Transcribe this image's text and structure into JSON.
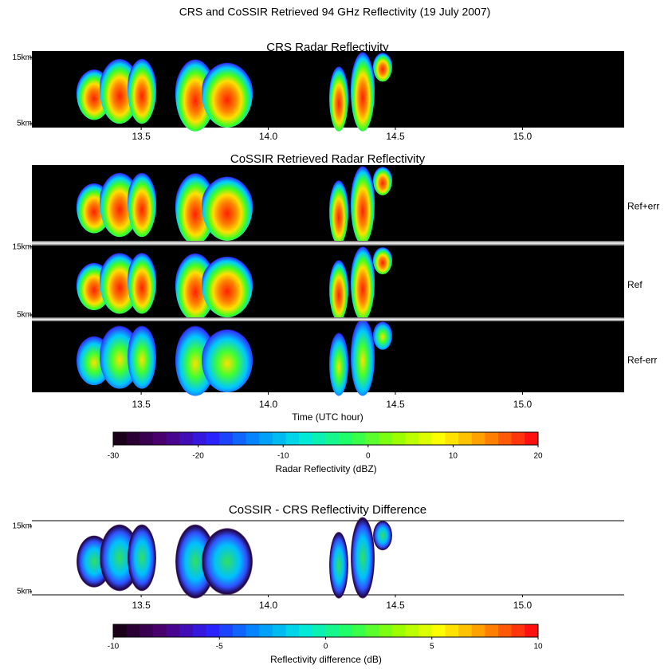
{
  "title": "CRS and CoSSIR Retrieved 94 GHz Reflectivity (19 July 2007)",
  "chart_data": [
    {
      "type": "heatmap",
      "title": "CRS Radar Reflectivity",
      "xlim": [
        13.07,
        15.4
      ],
      "xticks": [
        13.5,
        {
          "value": 14,
          "label": "14.0"
        },
        14.5,
        {
          "value": 15,
          "label": "15.0"
        }
      ],
      "ylim": [
        4.4,
        16
      ],
      "yticks": [
        {
          "value": 5,
          "label": "5km"
        },
        {
          "value": 15,
          "label": "15km"
        }
      ]
    },
    {
      "type": "heatmap",
      "title": "CoSSIR Retrieved Radar Reflectivity",
      "row_labels": [
        "Ref+err",
        "Ref",
        "Ref-err"
      ],
      "xlim": [
        13.07,
        15.4
      ],
      "xticks": [
        13.5,
        {
          "value": 14,
          "label": "14.0"
        },
        14.5,
        {
          "value": 15,
          "label": "15.0"
        }
      ],
      "xlabel": "Time (UTC hour)",
      "ylim": [
        4.65,
        15.2
      ],
      "yticks": [
        {
          "value": 5,
          "label": "5km"
        },
        {
          "value": 15,
          "label": "15km"
        }
      ],
      "colorbar": {
        "label": "Radar Reflectivity (dBZ)",
        "lim": [
          -30,
          20
        ],
        "ticks": [
          -30,
          -20,
          -10,
          0,
          10,
          20
        ]
      }
    },
    {
      "type": "heatmap",
      "title": "CoSSIR - CRS Reflectivity Difference",
      "xlim": [
        13.07,
        15.4
      ],
      "xticks": [
        13.5,
        {
          "value": 14,
          "label": "14.0"
        },
        14.5,
        {
          "value": 15,
          "label": "15.0"
        }
      ],
      "ylim": [
        4.5,
        15.85
      ],
      "yticks": [
        {
          "value": 5,
          "label": "5km"
        },
        {
          "value": 15,
          "label": "15km"
        }
      ],
      "colorbar": {
        "label": "Reflectivity difference (dB)",
        "lim": [
          -10,
          10
        ],
        "ticks": [
          -10,
          -5,
          0,
          5,
          10
        ]
      }
    }
  ]
}
